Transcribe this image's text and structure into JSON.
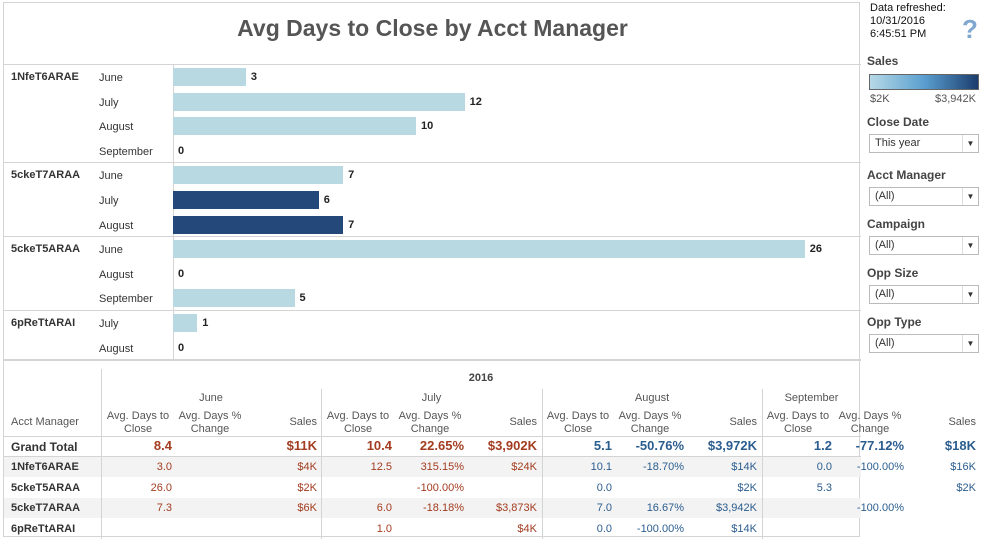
{
  "title": "Avg Days to Close by Acct Manager",
  "colors": {
    "light_bar": "#b8d8e2",
    "dark_bar": "#24487a",
    "red_text": "#a33c20",
    "blue_text": "#2b5d8f"
  },
  "chart_data": {
    "type": "bar",
    "title": "Avg Days to Close by Acct Manager",
    "orientation": "horizontal",
    "xlim": [
      0,
      28
    ],
    "groups": [
      {
        "manager": "1NfeT6ARAE",
        "bars": [
          {
            "month": "June",
            "value": 3,
            "shade": "light"
          },
          {
            "month": "July",
            "value": 12,
            "shade": "light"
          },
          {
            "month": "August",
            "value": 10,
            "shade": "light"
          },
          {
            "month": "September",
            "value": 0,
            "shade": "light"
          }
        ]
      },
      {
        "manager": "5ckeT7ARAA",
        "bars": [
          {
            "month": "June",
            "value": 7,
            "shade": "light"
          },
          {
            "month": "July",
            "value": 6,
            "shade": "dark"
          },
          {
            "month": "August",
            "value": 7,
            "shade": "dark"
          }
        ]
      },
      {
        "manager": "5ckeT5ARAA",
        "bars": [
          {
            "month": "June",
            "value": 26,
            "shade": "light"
          },
          {
            "month": "August",
            "value": 0,
            "shade": "light"
          },
          {
            "month": "September",
            "value": 5,
            "shade": "light"
          }
        ]
      },
      {
        "manager": "6pReTtARAI",
        "bars": [
          {
            "month": "July",
            "value": 1,
            "shade": "light"
          },
          {
            "month": "August",
            "value": 0,
            "shade": "light"
          }
        ]
      }
    ]
  },
  "table": {
    "year": "2016",
    "row_header": "Acct Manager",
    "months": [
      "June",
      "July",
      "August",
      "September"
    ],
    "col_labels": [
      "Avg. Days to Close",
      "Avg. Days % Change",
      "Sales"
    ],
    "grand_total": {
      "label": "Grand Total",
      "values": [
        [
          "8.4",
          "",
          "$11K"
        ],
        [
          "10.4",
          "22.65%",
          "$3,902K"
        ],
        [
          "5.1",
          "-50.76%",
          "$3,972K"
        ],
        [
          "1.2",
          "-77.12%",
          "$18K"
        ]
      ]
    },
    "rows": [
      {
        "name": "1NfeT6ARAE",
        "values": [
          [
            "3.0",
            "",
            "$4K"
          ],
          [
            "12.5",
            "315.15%",
            "$24K"
          ],
          [
            "10.1",
            "-18.70%",
            "$14K"
          ],
          [
            "0.0",
            "-100.00%",
            "$16K"
          ]
        ]
      },
      {
        "name": "5ckeT5ARAA",
        "values": [
          [
            "26.0",
            "",
            "$2K"
          ],
          [
            "",
            "-100.00%",
            ""
          ],
          [
            "0.0",
            "",
            "$2K"
          ],
          [
            "5.3",
            "",
            "$2K"
          ]
        ]
      },
      {
        "name": "5ckeT7ARAA",
        "values": [
          [
            "7.3",
            "",
            "$6K"
          ],
          [
            "6.0",
            "-18.18%",
            "$3,873K"
          ],
          [
            "7.0",
            "16.67%",
            "$3,942K"
          ],
          [
            "",
            "-100.00%",
            ""
          ]
        ]
      },
      {
        "name": "6pReTtARAI",
        "values": [
          [
            "",
            "",
            ""
          ],
          [
            "1.0",
            "",
            "$4K"
          ],
          [
            "0.0",
            "-100.00%",
            "$14K"
          ],
          [
            "",
            "",
            ""
          ]
        ]
      }
    ]
  },
  "sidebar": {
    "refresh_label": "Data refreshed:",
    "refresh_date": "10/31/2016",
    "refresh_time": "6:45:51 PM",
    "help_icon": "?",
    "sales_legend": {
      "title": "Sales",
      "min": "$2K",
      "max": "$3,942K"
    },
    "filters": [
      {
        "label": "Close Date",
        "value": "This year"
      },
      {
        "label": "Acct Manager",
        "value": "(All)"
      },
      {
        "label": "Campaign",
        "value": "(All)"
      },
      {
        "label": "Opp Size",
        "value": "(All)"
      },
      {
        "label": "Opp Type",
        "value": "(All)"
      }
    ]
  }
}
